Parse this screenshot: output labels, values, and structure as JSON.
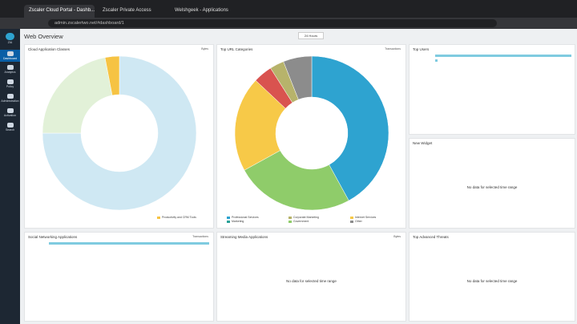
{
  "browser": {
    "tabs": [
      "Zscaler Cloud Portal - Dashb...",
      "Zscaler Private Access",
      "Welshgeek - Applications"
    ],
    "url": "admin.zscalertwo.net/#dashboard/1"
  },
  "sidebar": [
    "ZIA",
    "Dashboard",
    "Analytics",
    "Policy",
    "Administration",
    "Activation",
    "Search"
  ],
  "page": {
    "title": "Web Overview",
    "range": "24 Hours"
  },
  "widgets": {
    "cloud_apps": {
      "title": "Cloud Application Classes",
      "unit": "Bytes",
      "legend": [
        "Productivity and CRM Tools"
      ],
      "slices": [
        {
          "value": 75,
          "color": "#cfe8f3"
        },
        {
          "value": 22,
          "color": "#e2f1d8"
        },
        {
          "value": 3,
          "color": "#f6c343"
        }
      ]
    },
    "url_categories": {
      "title": "Top URL Categories",
      "unit": "Transactions",
      "legend": [
        "Professional Services",
        "Corporate Marketing",
        "Internet Services",
        "Marketing",
        "Government",
        "Other"
      ],
      "slices": [
        {
          "value": 42,
          "color": "#2ea3d0"
        },
        {
          "value": 25,
          "color": "#8fcc6a"
        },
        {
          "value": 20,
          "color": "#f7c948"
        },
        {
          "value": 4,
          "color": "#d9534f"
        },
        {
          "value": 3,
          "color": "#b7b36b"
        },
        {
          "value": 6,
          "color": "#8c8c8c"
        }
      ],
      "legend_colors": [
        "#2ea3d0",
        "#b7b36b",
        "#f7c948",
        "#2aa198",
        "#8fcc6a",
        "#8c8c8c"
      ]
    },
    "top_users": {
      "title": "Top Users",
      "bars": [
        100,
        2
      ]
    },
    "new_widget": {
      "title": "New Widget",
      "message": "No data for selected time range"
    },
    "social": {
      "title": "Social Networking Applications",
      "unit": "Transactions",
      "bars": [
        100
      ]
    },
    "streaming": {
      "title": "Streaming Media Applications",
      "unit": "Bytes",
      "message": "No data for selected time range"
    },
    "threats": {
      "title": "Top Advanced Threats",
      "message": "No data for selected time range"
    }
  }
}
